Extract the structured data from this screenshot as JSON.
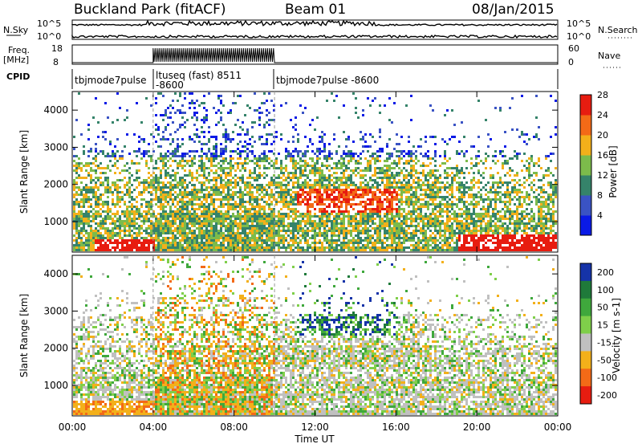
{
  "header": {
    "station": "Buckland Park (fitACF)",
    "beam": "Beam 01",
    "date": "08/Jan/2015"
  },
  "noise_panel": {
    "left_label": "N.Sky",
    "right_label": "N.Search",
    "left_ticks": [
      "10^5",
      "10^0"
    ],
    "right_ticks": [
      "10^5",
      "10^0"
    ]
  },
  "freq_panel": {
    "left_label_1": "Freq.",
    "left_label_2": "[MHz]",
    "right_label": "Nave",
    "left_ticks": [
      "18",
      "8"
    ],
    "right_ticks": [
      "60",
      "0"
    ]
  },
  "cpid": {
    "label": "CPID",
    "segments": [
      {
        "line1": "tbjmode7pulse",
        "line2": ""
      },
      {
        "line1": "ltuseq (fast) 8511",
        "line2": "-8600"
      },
      {
        "line1": "tbjmode7pulse  -8600",
        "line2": ""
      }
    ]
  },
  "chart_data": [
    {
      "type": "heatmap",
      "name": "Power",
      "xlabel": "",
      "ylabel": "Slant Range [km]",
      "ylim": [
        180,
        4500
      ],
      "y_ticks": [
        "1000",
        "2000",
        "3000",
        "4000"
      ],
      "x_ticks": [
        "00:00",
        "04:00",
        "08:00",
        "12:00",
        "16:00",
        "20:00",
        "00:00"
      ],
      "colorbar": {
        "label": "Power [dB]",
        "ticks": [
          "4",
          "8",
          "12",
          "16",
          "20",
          "24",
          "28"
        ],
        "colors": [
          "#0a1ae6",
          "#3a53c4",
          "#35836a",
          "#7cbb4b",
          "#f3b01a",
          "#f36a17",
          "#e71c10"
        ]
      }
    },
    {
      "type": "heatmap",
      "name": "Velocity",
      "xlabel": "Time UT",
      "ylabel": "Slant Range [km]",
      "ylim": [
        180,
        4500
      ],
      "y_ticks": [
        "1000",
        "2000",
        "3000",
        "4000"
      ],
      "x_ticks": [
        "00:00",
        "04:00",
        "08:00",
        "12:00",
        "16:00",
        "20:00",
        "00:00"
      ],
      "colorbar": {
        "label": "Velocity [m s-1]",
        "ticks": [
          "200",
          "100",
          "50",
          "15",
          "-15",
          "-50",
          "-100",
          "-200"
        ],
        "colors": [
          "#1533a8",
          "#1f7a3a",
          "#3fa83c",
          "#7fcf4a",
          "#c0c0c0",
          "#f3b01a",
          "#f36a17",
          "#e71c10"
        ]
      }
    }
  ]
}
